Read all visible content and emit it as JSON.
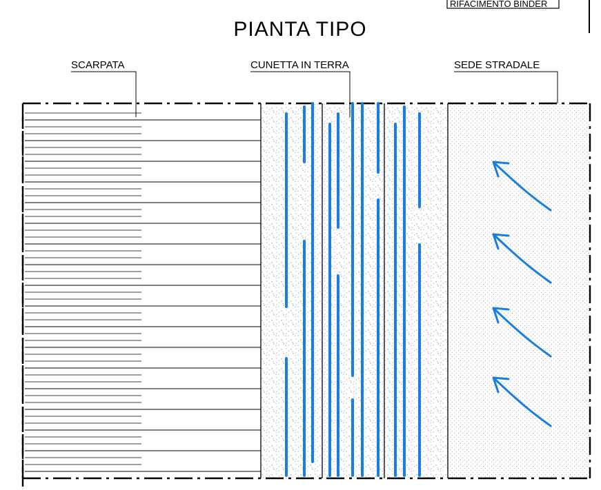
{
  "title": "PIANTA TIPO",
  "corner_label": "RIFACIMENTO BINDER",
  "zones": {
    "scarpata": "SCARPATA",
    "cunetta": "CUNETTA IN TERRA",
    "sede": "SEDE STRADALE"
  },
  "colors": {
    "water_flow": "#1a7de0",
    "linework": "#000000",
    "hatch": "#555555"
  },
  "flow_arrow_count": 4
}
